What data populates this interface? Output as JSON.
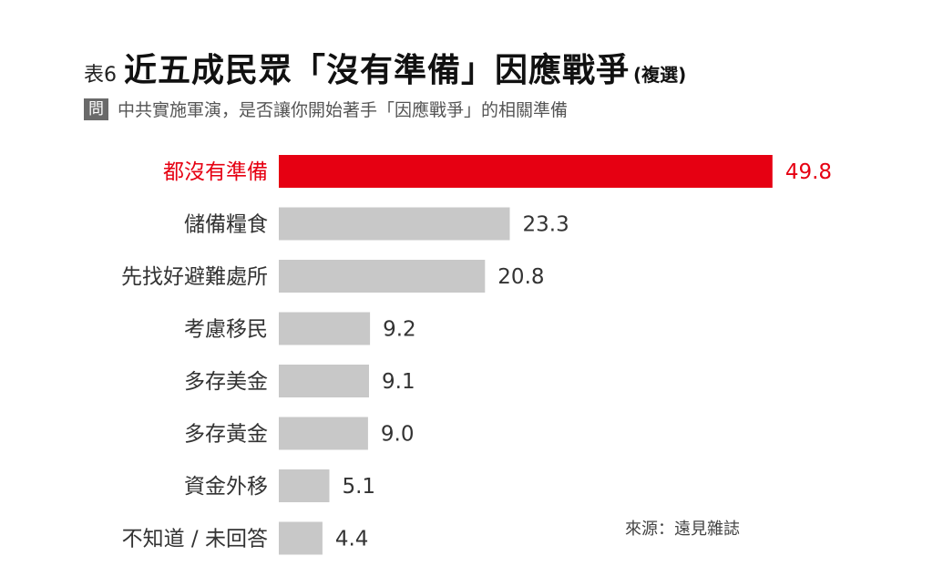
{
  "header": {
    "table_tag": "表6",
    "title": "近五成民眾「沒有準備」因應戰爭",
    "title_suffix": "(複選)",
    "question_badge": "問",
    "question_text": "中共實施軍演，是否讓你開始著手「因應戰爭」的相關準備"
  },
  "source": "來源：遠見雜誌",
  "colors": {
    "highlight": "#e60012",
    "bar": "#c8c8c8"
  },
  "chart_data": {
    "type": "bar",
    "orientation": "horizontal",
    "title": "近五成民眾「沒有準備」因應戰爭",
    "xlim": [
      0,
      50
    ],
    "grid": false,
    "categories": [
      "都沒有準備",
      "儲備糧食",
      "先找好避難處所",
      "考慮移民",
      "多存美金",
      "多存黃金",
      "資金外移",
      "不知道 / 未回答"
    ],
    "values": [
      49.8,
      23.3,
      20.8,
      9.2,
      9.1,
      9.0,
      5.1,
      4.4
    ],
    "value_labels": [
      "49.8",
      "23.3",
      "20.8",
      "9.2",
      "9.1",
      "9.0",
      "5.1",
      "4.4"
    ],
    "highlight_index": 0
  }
}
